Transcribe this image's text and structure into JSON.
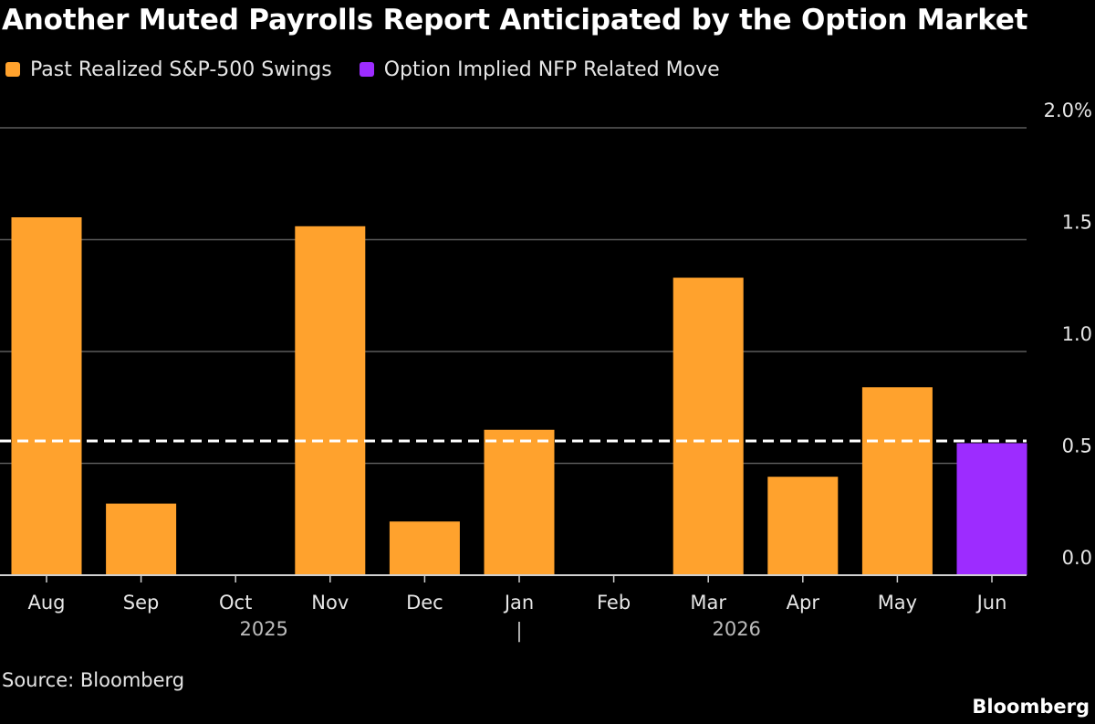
{
  "header": {
    "title": "Another Muted Payrolls Report Anticipated by the Option Market"
  },
  "footer": {
    "source": "Source: Bloomberg",
    "brand": "Bloomberg"
  },
  "colors": {
    "realized": "#ffa22d",
    "implied": "#9d2cff",
    "grid": "#5a5a5a",
    "dashed_line": "#ffffff"
  },
  "chart_data": {
    "type": "bar",
    "title": "Another Muted Payrolls Report Anticipated by the Option Market",
    "categories": [
      "Aug",
      "Sep",
      "Oct",
      "Nov",
      "Dec",
      "Jan",
      "Feb",
      "Mar",
      "Apr",
      "May",
      "Jun"
    ],
    "series": [
      {
        "name": "Past Realized S&P-500 Swings",
        "values": [
          1.6,
          0.32,
          null,
          1.56,
          0.24,
          0.65,
          null,
          1.33,
          0.44,
          0.84,
          null
        ]
      },
      {
        "name": "Option Implied NFP Related Move",
        "values": [
          null,
          null,
          null,
          null,
          null,
          null,
          null,
          null,
          null,
          null,
          0.59
        ]
      }
    ],
    "reference_line": {
      "value": 0.6,
      "style": "dashed"
    },
    "year_labels": [
      {
        "label": "2025",
        "category": "Oct"
      },
      {
        "label": "2026",
        "category": "Mar"
      }
    ],
    "year_divider": "|",
    "year_divider_category": "Jan",
    "y_axis": {
      "ticks": [
        0,
        0.5,
        1,
        1.5,
        2
      ],
      "tick_labels": [
        "0.0",
        "0.5",
        "1.0",
        "1.5",
        "2.0%"
      ],
      "position": "right"
    },
    "ylim": [
      0,
      2
    ],
    "grid": true,
    "legend": "top-left"
  }
}
